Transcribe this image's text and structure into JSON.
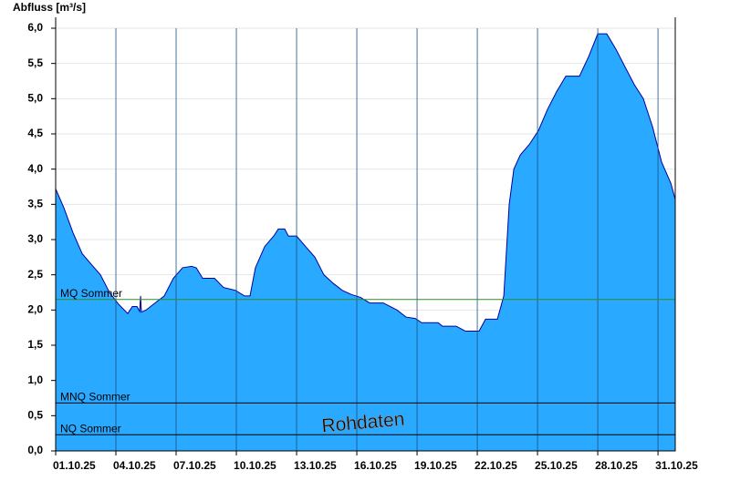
{
  "chart_data": {
    "type": "area",
    "y_label": "Abfluss [m³/s]",
    "annotation": "Rohdaten",
    "color": "#29a9ff",
    "line_color": "#0000a0",
    "x": [
      1.0,
      1.41,
      1.86,
      2.32,
      2.77,
      3.23,
      3.68,
      4.14,
      4.59,
      4.82,
      5.05,
      5.18,
      5.23,
      5.27,
      5.5,
      5.95,
      6.41,
      6.86,
      7.32,
      7.77,
      8.0,
      8.32,
      8.91,
      9.36,
      9.95,
      10.41,
      10.68,
      10.95,
      11.41,
      11.86,
      12.09,
      12.41,
      12.59,
      13.0,
      13.45,
      13.91,
      14.36,
      14.82,
      15.27,
      15.73,
      16.18,
      16.64,
      17.32,
      18.0,
      18.45,
      18.91,
      19.23,
      20.05,
      20.27,
      20.95,
      21.41,
      22.09,
      22.41,
      23.0,
      23.32,
      23.59,
      23.82,
      24.14,
      24.59,
      25.05,
      25.5,
      25.95,
      26.41,
      27.09,
      27.55,
      28.0,
      28.45,
      28.91,
      29.36,
      29.82,
      30.27,
      30.73,
      31.18,
      31.64,
      31.86
    ],
    "values": [
      3.72,
      3.45,
      3.1,
      2.8,
      2.65,
      2.5,
      2.25,
      2.08,
      1.95,
      2.05,
      2.05,
      1.98,
      2.2,
      1.97,
      2.0,
      2.1,
      2.2,
      2.45,
      2.6,
      2.62,
      2.6,
      2.45,
      2.45,
      2.32,
      2.28,
      2.2,
      2.2,
      2.6,
      2.9,
      3.05,
      3.15,
      3.15,
      3.05,
      3.05,
      2.9,
      2.75,
      2.5,
      2.38,
      2.28,
      2.22,
      2.18,
      2.1,
      2.1,
      2.0,
      1.9,
      1.88,
      1.82,
      1.82,
      1.77,
      1.77,
      1.7,
      1.7,
      1.87,
      1.87,
      2.2,
      3.5,
      4.0,
      4.2,
      4.35,
      4.55,
      4.85,
      5.1,
      5.32,
      5.32,
      5.6,
      5.92,
      5.92,
      5.7,
      5.45,
      5.2,
      5.0,
      4.6,
      4.1,
      3.8,
      3.57
    ],
    "xlim": [
      1,
      31.86
    ],
    "xticks": [
      {
        "value": 1,
        "label": "01.10.25"
      },
      {
        "value": 4,
        "label": "04.10.25"
      },
      {
        "value": 7,
        "label": "07.10.25"
      },
      {
        "value": 10,
        "label": "10.10.25"
      },
      {
        "value": 13,
        "label": "13.10.25"
      },
      {
        "value": 16,
        "label": "16.10.25"
      },
      {
        "value": 19,
        "label": "19.10.25"
      },
      {
        "value": 22,
        "label": "22.10.25"
      },
      {
        "value": 25,
        "label": "25.10.25"
      },
      {
        "value": 28,
        "label": "28.10.25"
      },
      {
        "value": 31,
        "label": "31.10.25"
      }
    ],
    "ylim": [
      0,
      6
    ],
    "yticks": [
      {
        "value": 0,
        "label": "0,0"
      },
      {
        "value": 0.5,
        "label": "0,5"
      },
      {
        "value": 1,
        "label": "1,0"
      },
      {
        "value": 1.5,
        "label": "1,5"
      },
      {
        "value": 2,
        "label": "2,0"
      },
      {
        "value": 2.5,
        "label": "2,5"
      },
      {
        "value": 3,
        "label": "3,0"
      },
      {
        "value": 3.5,
        "label": "3,5"
      },
      {
        "value": 4,
        "label": "4,0"
      },
      {
        "value": 4.5,
        "label": "4,5"
      },
      {
        "value": 5,
        "label": "5,0"
      },
      {
        "value": 5.5,
        "label": "5,5"
      },
      {
        "value": 6,
        "label": "6,0"
      }
    ],
    "grid": true,
    "reference_lines": [
      {
        "label": "MQ Sommer",
        "value": 2.15,
        "color": "#2e8b2e"
      },
      {
        "label": "MNQ Sommer",
        "value": 0.68,
        "color": "#000000"
      },
      {
        "label": "NQ Sommer",
        "value": 0.23,
        "color": "#000000"
      }
    ]
  }
}
